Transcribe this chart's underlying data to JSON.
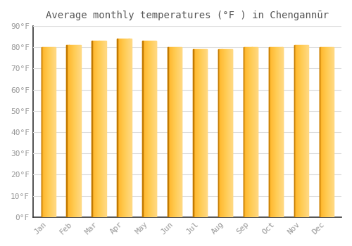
{
  "title": "Average monthly temperatures (°F ) in Chengannūr",
  "months": [
    "Jan",
    "Feb",
    "Mar",
    "Apr",
    "May",
    "Jun",
    "Jul",
    "Aug",
    "Sep",
    "Oct",
    "Nov",
    "Dec"
  ],
  "values": [
    80,
    81,
    83,
    84,
    83,
    80,
    79,
    79,
    80,
    80,
    81,
    80
  ],
  "bar_color_left": "#E8940A",
  "bar_color_mid": "#FFBB33",
  "bar_color_right": "#FFD070",
  "background_color": "#FFFFFF",
  "grid_color": "#DDDDDD",
  "text_color": "#999999",
  "spine_color": "#333333",
  "ylim": [
    0,
    90
  ],
  "yticks": [
    0,
    10,
    20,
    30,
    40,
    50,
    60,
    70,
    80,
    90
  ],
  "ytick_labels": [
    "0°F",
    "10°F",
    "20°F",
    "30°F",
    "40°F",
    "50°F",
    "60°F",
    "70°F",
    "80°F",
    "90°F"
  ],
  "title_fontsize": 10,
  "tick_fontsize": 8,
  "bar_width": 0.55,
  "n_gradient_strips": 40
}
